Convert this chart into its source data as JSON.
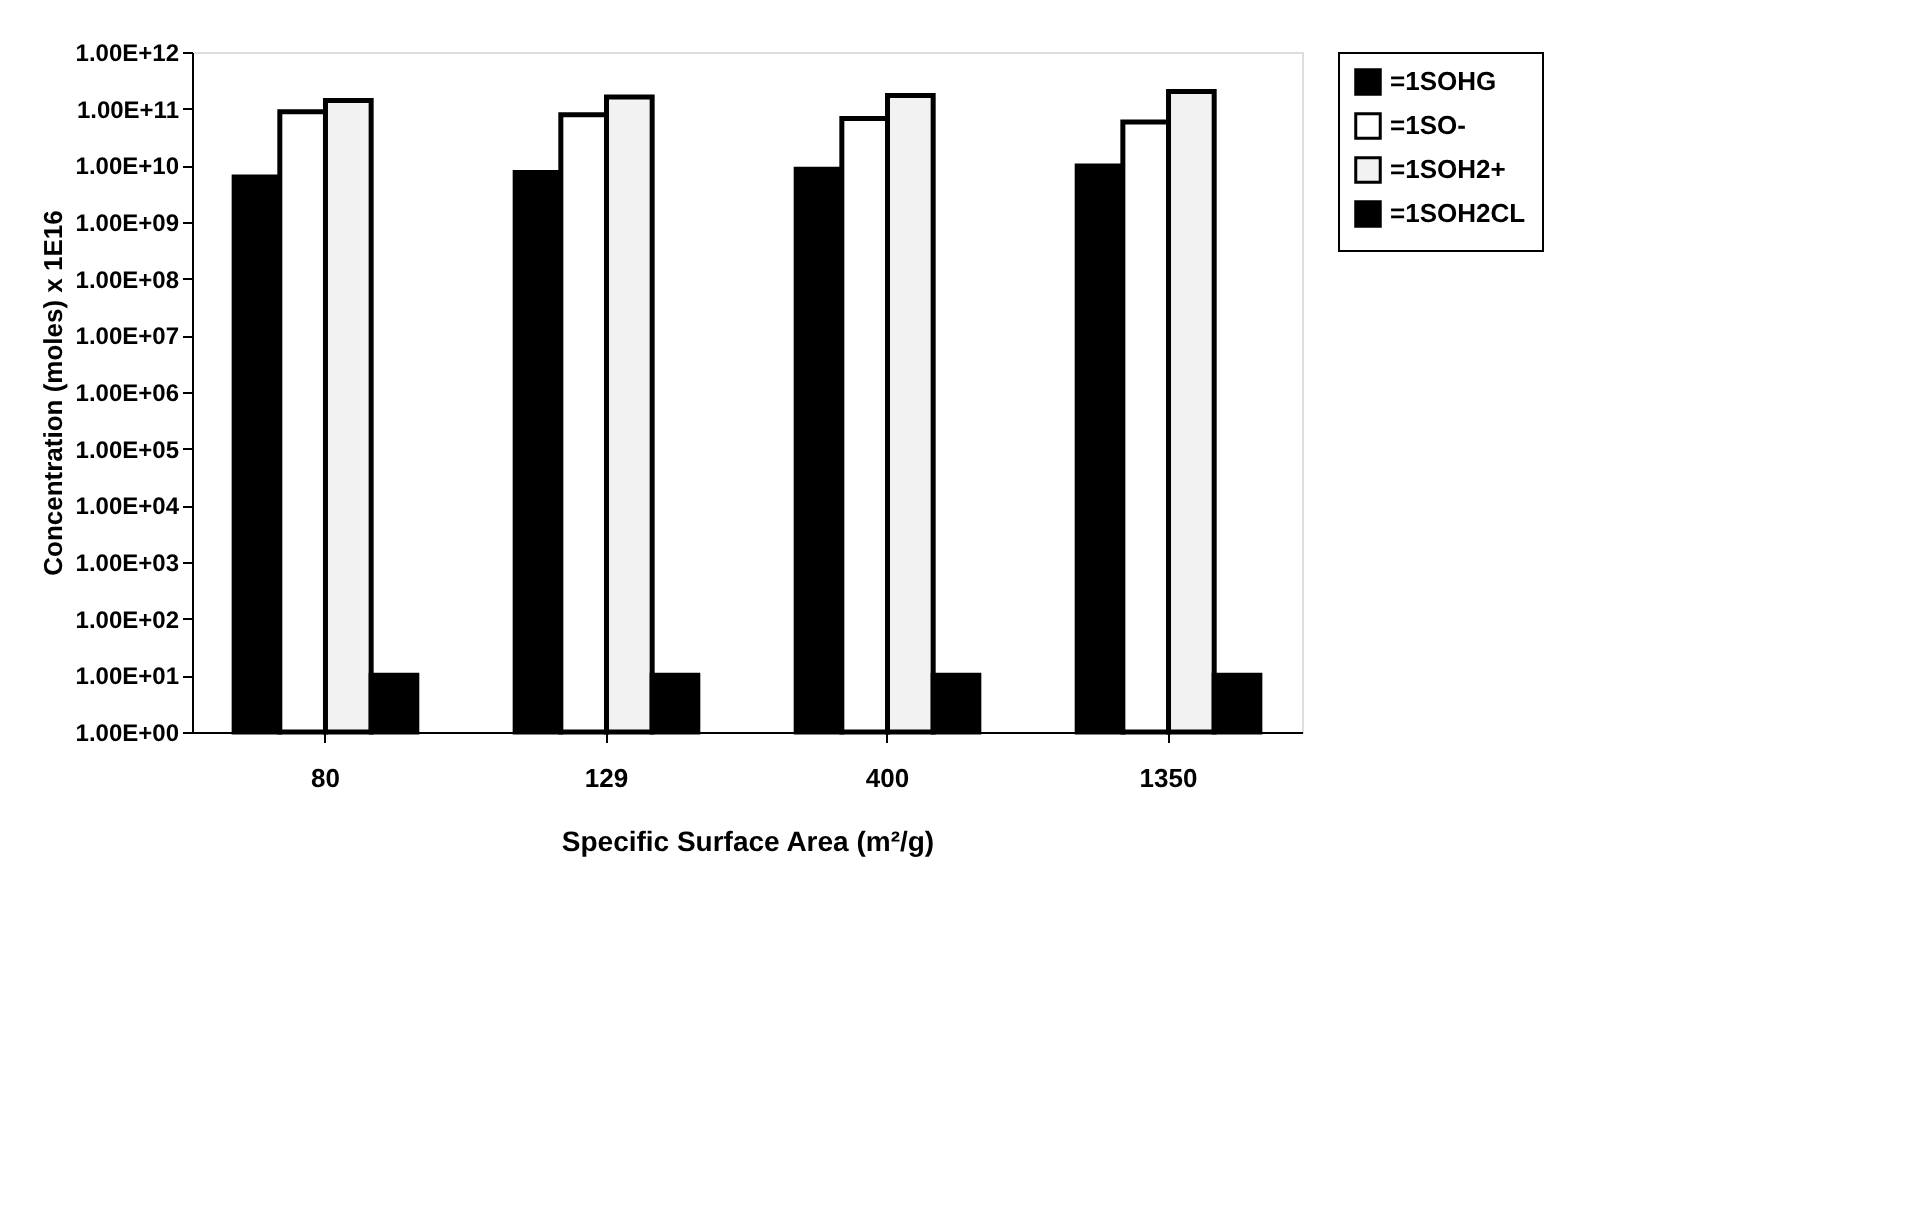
{
  "chart_data": {
    "type": "bar",
    "xlabel": "Specific Surface Area (m²/g)",
    "ylabel": "Concentration (moles) x 1E16",
    "categories": [
      "80",
      "129",
      "400",
      "1350"
    ],
    "series": [
      {
        "name": "=1SOHG",
        "color": "#000000",
        "values": [
          6200000000.0,
          7500000000.0,
          8500000000.0,
          9700000000.0
        ]
      },
      {
        "name": "=1SO-",
        "color": "#ffffff",
        "values": [
          88000000000.0,
          78000000000.0,
          67000000000.0,
          58000000000.0
        ]
      },
      {
        "name": "=1SOH2+",
        "color": "#f2f2f2",
        "values": [
          140000000000.0,
          160000000000.0,
          170000000000.0,
          200000000000.0
        ]
      },
      {
        "name": "=1SOH2CL",
        "color": "#000000",
        "values": [
          10,
          10,
          10,
          10
        ]
      }
    ],
    "log": true,
    "ylim": [
      1,
      1000000000000.0
    ],
    "yticks": [
      {
        "value": 1,
        "label": "1.00E+00"
      },
      {
        "value": 10,
        "label": "1.00E+01"
      },
      {
        "value": 100,
        "label": "1.00E+02"
      },
      {
        "value": 1000,
        "label": "1.00E+03"
      },
      {
        "value": 10000,
        "label": "1.00E+04"
      },
      {
        "value": 100000,
        "label": "1.00E+05"
      },
      {
        "value": 1000000,
        "label": "1.00E+06"
      },
      {
        "value": 10000000,
        "label": "1.00E+07"
      },
      {
        "value": 100000000,
        "label": "1.00E+08"
      },
      {
        "value": 1000000000,
        "label": "1.00E+09"
      },
      {
        "value": 10000000000,
        "label": "1.00E+10"
      },
      {
        "value": 100000000000,
        "label": "1.00E+11"
      },
      {
        "value": 1000000000000,
        "label": "1.00E+12"
      }
    ],
    "grid": false,
    "legend": "right"
  }
}
